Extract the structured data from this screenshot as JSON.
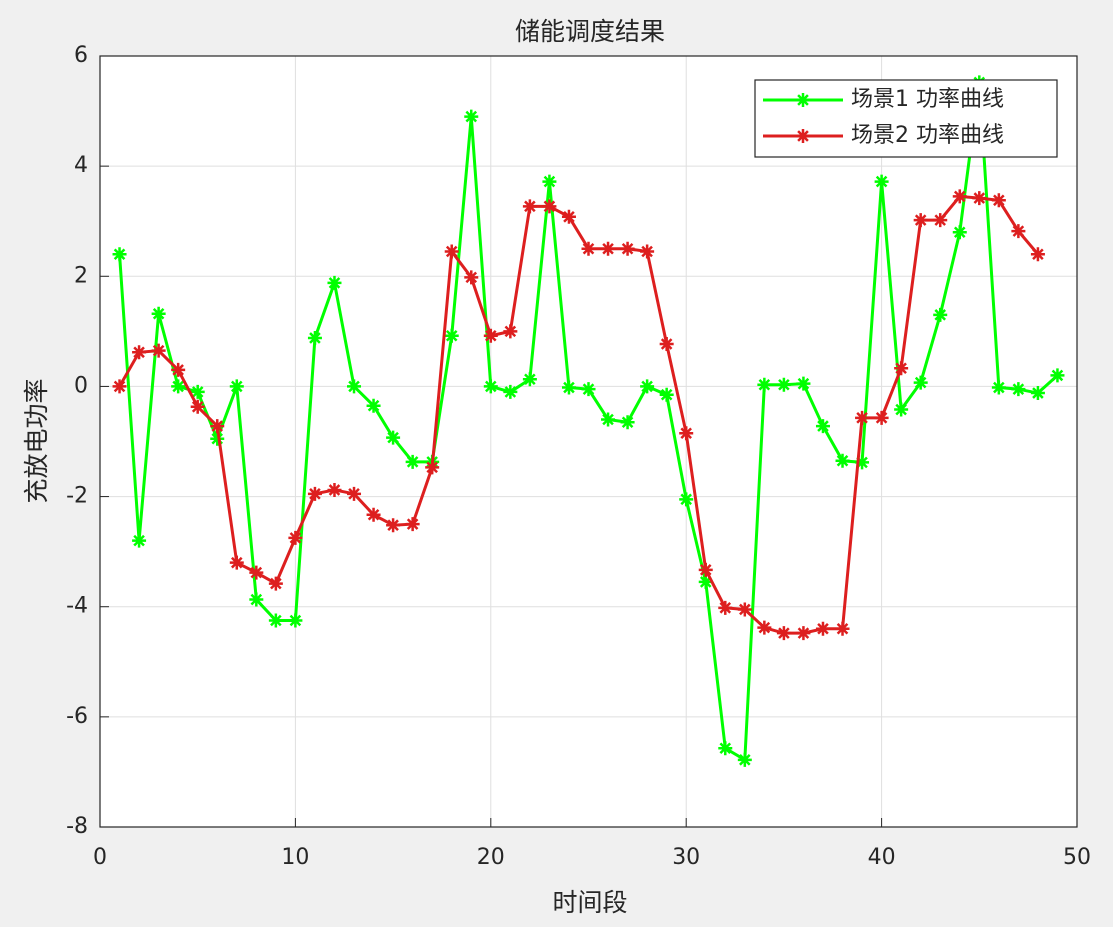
{
  "chart_data": {
    "type": "line",
    "title": "储能调度结果",
    "xlabel": "时间段",
    "ylabel": "充放电功率",
    "xlim": [
      0,
      50
    ],
    "xticks": [
      0,
      10,
      20,
      30,
      40,
      50
    ],
    "ylim": [
      -8,
      6
    ],
    "yticks": [
      -8,
      -6,
      -4,
      -2,
      0,
      2,
      4,
      6
    ],
    "grid": true,
    "legend": "upper right",
    "series": [
      {
        "name": "场景1 功率曲线",
        "color": "#00ff00",
        "x": [
          1,
          2,
          3,
          4,
          5,
          6,
          7,
          8,
          9,
          10,
          11,
          12,
          13,
          14,
          15,
          16,
          17,
          18,
          19,
          20,
          21,
          22,
          23,
          24,
          25,
          26,
          27,
          28,
          29,
          30,
          31,
          32,
          33,
          34,
          35,
          36,
          37,
          38,
          39,
          40,
          41,
          42,
          43,
          44,
          45,
          46,
          47,
          48,
          49
        ],
        "values": [
          2.4,
          -2.8,
          1.32,
          0,
          -0.1,
          -0.95,
          0,
          -3.87,
          -4.25,
          -4.25,
          0.88,
          1.88,
          0,
          -0.35,
          -0.93,
          -1.37,
          -1.37,
          0.92,
          4.9,
          0,
          -0.1,
          0.13,
          3.72,
          -0.02,
          -0.05,
          -0.6,
          -0.65,
          0,
          -0.15,
          -2.05,
          -3.55,
          -6.57,
          -6.78,
          0.03,
          0.03,
          0.05,
          -0.72,
          -1.35,
          -1.38,
          3.72,
          -0.42,
          0.07,
          1.3,
          2.8,
          5.52,
          -0.02,
          -0.05,
          -0.12,
          0.2
        ]
      },
      {
        "name": "场景2 功率曲线",
        "color": "#dd1f1f",
        "x": [
          1,
          2,
          3,
          4,
          5,
          6,
          7,
          8,
          9,
          10,
          11,
          12,
          13,
          14,
          15,
          16,
          17,
          18,
          19,
          20,
          21,
          22,
          23,
          24,
          25,
          26,
          27,
          28,
          29,
          30,
          31,
          32,
          33,
          34,
          35,
          36,
          37,
          38,
          39,
          40,
          41,
          42,
          43,
          44,
          45,
          46,
          47,
          48
        ],
        "values": [
          0,
          0.62,
          0.65,
          0.3,
          -0.37,
          -0.72,
          -3.2,
          -3.38,
          -3.58,
          -2.75,
          -1.95,
          -1.88,
          -1.95,
          -2.33,
          -2.52,
          -2.5,
          -1.47,
          2.45,
          1.98,
          0.92,
          1.0,
          3.27,
          3.27,
          3.08,
          2.5,
          2.5,
          2.5,
          2.45,
          0.77,
          -0.85,
          -3.33,
          -4.02,
          -4.05,
          -4.38,
          -4.48,
          -4.48,
          -4.4,
          -4.4,
          -0.57,
          -0.57,
          0.33,
          3.02,
          3.02,
          3.45,
          3.42,
          3.38,
          2.82,
          2.4
        ]
      }
    ]
  }
}
